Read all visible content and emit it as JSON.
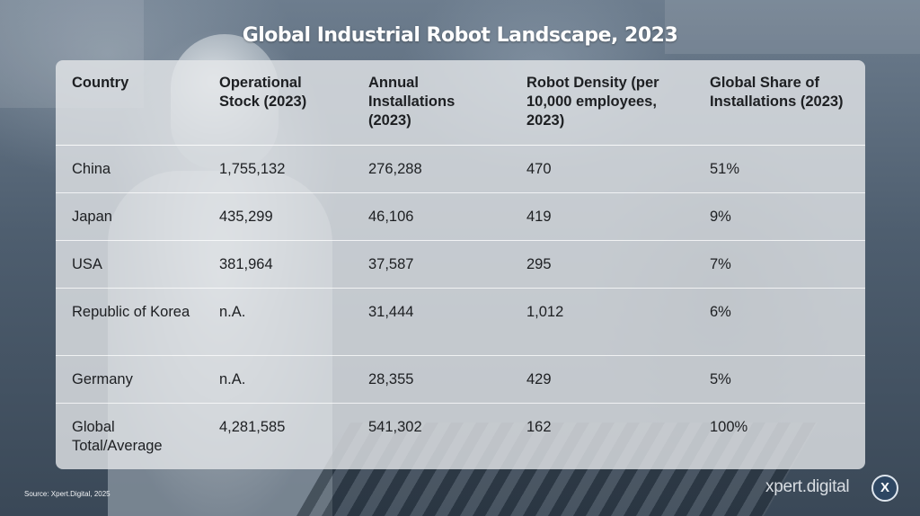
{
  "title": "Global Industrial Robot Landscape, 2023",
  "table": {
    "headers": [
      "Country",
      "Operational Stock (2023)",
      "Annual Installations (2023)",
      "Robot Density (per 10,000 employees, 2023)",
      "Global Share of Installations (2023)"
    ],
    "rows": [
      [
        "China",
        "1,755,132",
        "276,288",
        "470",
        "51%"
      ],
      [
        "Japan",
        "435,299",
        "46,106",
        "419",
        "9%"
      ],
      [
        "USA",
        "381,964",
        "37,587",
        "295",
        "7%"
      ],
      [
        "Republic of Korea",
        "n.A.",
        "31,444",
        "1,012",
        "6%"
      ],
      [
        "Germany",
        "n.A.",
        "28,355",
        "429",
        "5%"
      ],
      [
        "Global Total/Average",
        "4,281,585",
        "541,302",
        "162",
        "100%"
      ]
    ]
  },
  "source": "Source: Xpert.Digital, 2025",
  "brand": {
    "name": "xpert.digital",
    "badge_letter": "X",
    "badge_color": "#2e4763"
  }
}
